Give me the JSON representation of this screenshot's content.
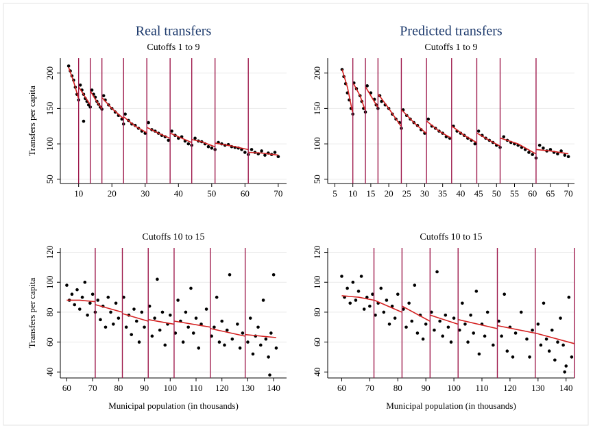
{
  "chart_data": [
    {
      "type": "scatter",
      "title": "Real transfers",
      "subtitle": "Cutoffs 1 to 9",
      "ylabel": "Transfers per capita",
      "xlim": [
        4.5,
        72.5
      ],
      "ylim": [
        44,
        221
      ],
      "xticks": [
        10,
        20,
        30,
        40,
        50,
        60,
        70
      ],
      "yticks": [
        50,
        100,
        150,
        200
      ],
      "grid": true,
      "vlines": [
        10,
        13.5,
        17,
        23.5,
        30.5,
        37.5,
        44,
        51,
        61
      ],
      "vline_color": "#9e1a4c",
      "series": [
        {
          "type": "scatter",
          "color": "#000000",
          "x": [
            7,
            7.5,
            8,
            8.5,
            9,
            9.5,
            10,
            10.5,
            11,
            11.5,
            12,
            12.5,
            13,
            13.5,
            14,
            14.5,
            15,
            15.5,
            16,
            16.5,
            17,
            17.5,
            18,
            19,
            20,
            21,
            22,
            23,
            23.5,
            24,
            25,
            26,
            27,
            28,
            29,
            30,
            31,
            32,
            33,
            34,
            35,
            36,
            37,
            38,
            39,
            40,
            41,
            42,
            43,
            44,
            45,
            46,
            47,
            48,
            49,
            50,
            51,
            52,
            53,
            54,
            55,
            56,
            57,
            58,
            59,
            60,
            61,
            62,
            63,
            64,
            65,
            66,
            67,
            68,
            69,
            70,
            11.5
          ],
          "values": [
            210,
            203,
            196,
            190,
            180,
            170,
            162,
            183,
            176,
            170,
            164,
            160,
            155,
            152,
            176,
            170,
            166,
            160,
            156,
            152,
            149,
            168,
            162,
            155,
            150,
            145,
            140,
            135,
            128,
            142,
            133,
            128,
            126,
            122,
            118,
            115,
            130,
            120,
            118,
            115,
            112,
            110,
            105,
            118,
            112,
            108,
            110,
            104,
            100,
            98,
            108,
            104,
            103,
            100,
            96,
            94,
            92,
            102,
            100,
            98,
            99,
            96,
            95,
            94,
            92,
            88,
            85,
            92,
            88,
            86,
            90,
            84,
            87,
            85,
            88,
            82,
            132
          ]
        },
        {
          "type": "line",
          "color": "#d42020",
          "x": [
            7,
            8.5,
            9.9,
            10,
            10.1,
            12,
            13.4,
            13.5,
            13.6,
            15,
            16.9,
            17,
            17.1,
            20,
            23.4,
            23.5,
            23.6,
            27,
            30.4,
            30.5,
            30.6,
            34,
            37.4,
            37.5,
            37.6,
            41,
            43.9,
            44,
            44.1,
            47,
            50.9,
            51,
            51.1,
            56,
            60.9,
            61,
            61.1,
            65,
            70
          ],
          "values": [
            208,
            188,
            165,
            null,
            180,
            166,
            156,
            null,
            174,
            163,
            150,
            null,
            165,
            150,
            136,
            null,
            138,
            125,
            116,
            null,
            123,
            115,
            108,
            null,
            115,
            108,
            102,
            null,
            106,
            103,
            96,
            null,
            101,
            97,
            92,
            null,
            88,
            87,
            84
          ]
        }
      ]
    },
    {
      "type": "scatter",
      "title": "Predicted transfers",
      "subtitle": "Cutoffs 1 to 9",
      "xlim": [
        3,
        71.7
      ],
      "ylim": [
        44,
        221
      ],
      "xticks": [
        5,
        10,
        15,
        20,
        25,
        30,
        35,
        40,
        45,
        50,
        55,
        60,
        65,
        70
      ],
      "yticks": [
        50,
        100,
        150,
        200
      ],
      "grid": true,
      "vlines": [
        10,
        13.5,
        17,
        23.5,
        30.5,
        37.5,
        44.5,
        51,
        61
      ],
      "vline_color": "#9e1a4c",
      "series": [
        {
          "type": "scatter",
          "color": "#000000",
          "x": [
            7,
            7.5,
            8,
            8.5,
            9,
            9.5,
            10,
            10.3,
            11,
            12,
            12.5,
            13,
            13.5,
            14,
            15,
            16,
            16.5,
            17,
            17.5,
            18,
            19,
            20,
            21,
            22,
            23,
            23.5,
            24,
            25,
            26,
            27,
            28,
            29,
            30,
            31,
            32,
            33,
            34,
            35,
            36,
            37,
            38,
            39,
            40,
            41,
            42,
            43,
            44,
            45,
            46,
            47,
            48,
            49,
            50,
            51,
            52,
            53,
            54,
            55,
            56,
            57,
            58,
            59,
            60,
            61,
            62,
            63,
            64,
            65,
            66,
            67,
            68,
            69,
            70
          ],
          "values": [
            205,
            195,
            185,
            172,
            162,
            150,
            142,
            186,
            178,
            168,
            160,
            150,
            145,
            182,
            172,
            163,
            155,
            150,
            168,
            160,
            155,
            150,
            142,
            135,
            130,
            122,
            148,
            140,
            135,
            130,
            126,
            120,
            115,
            135,
            125,
            122,
            118,
            115,
            110,
            108,
            125,
            118,
            115,
            112,
            108,
            105,
            100,
            118,
            112,
            108,
            105,
            102,
            98,
            95,
            110,
            105,
            102,
            100,
            98,
            95,
            92,
            88,
            85,
            80,
            98,
            94,
            90,
            92,
            88,
            86,
            90,
            84,
            82
          ]
        },
        {
          "type": "line",
          "color": "#d42020",
          "x": [
            7,
            8.5,
            9.9,
            10,
            10.2,
            12,
            13.4,
            13.5,
            13.6,
            15,
            16.9,
            17,
            17.1,
            20,
            23.4,
            23.5,
            23.6,
            27,
            30.4,
            30.5,
            30.6,
            34,
            37.4,
            37.5,
            37.6,
            41,
            44.4,
            44.5,
            44.6,
            48,
            50.9,
            51,
            51.1,
            56,
            60.9,
            61,
            61.1,
            65,
            70
          ],
          "values": [
            205,
            180,
            145,
            null,
            185,
            168,
            148,
            null,
            180,
            168,
            152,
            null,
            170,
            150,
            125,
            null,
            148,
            130,
            115,
            null,
            132,
            118,
            108,
            null,
            125,
            112,
            102,
            null,
            115,
            105,
            97,
            null,
            108,
            100,
            86,
            null,
            92,
            90,
            86
          ]
        }
      ]
    },
    {
      "type": "scatter",
      "subtitle": "Cutoffs 10 to 15",
      "ylabel": "Transfers per capita",
      "xlabel": "Municipal population (in thousands)",
      "xlim": [
        57.5,
        145
      ],
      "ylim": [
        36,
        123
      ],
      "xticks": [
        60,
        70,
        80,
        90,
        100,
        110,
        120,
        130,
        140
      ],
      "yticks": [
        40,
        60,
        80,
        100,
        120
      ],
      "grid": true,
      "vlines": [
        71,
        81.5,
        91.5,
        101.5,
        115.5,
        129
      ],
      "vline_color": "#9e1a4c",
      "series": [
        {
          "type": "scatter",
          "color": "#000000",
          "x": [
            60,
            61,
            62,
            63,
            64,
            65,
            66,
            67,
            68,
            69,
            70,
            71,
            72,
            73,
            74,
            75,
            76,
            77,
            78,
            79,
            80,
            82,
            83,
            84,
            85,
            86,
            87,
            88,
            89,
            90,
            92,
            93,
            94,
            95,
            96,
            97,
            98,
            99,
            100,
            102,
            103,
            104,
            105,
            106,
            107,
            108,
            109,
            110,
            111,
            112,
            114,
            116,
            117,
            118,
            119,
            120,
            121,
            122,
            123,
            124,
            126,
            127,
            128,
            130,
            131,
            132,
            133,
            134,
            135,
            136,
            137,
            138,
            139,
            140,
            141,
            138.5
          ],
          "values": [
            98,
            88,
            92,
            85,
            95,
            82,
            90,
            100,
            78,
            86,
            92,
            80,
            88,
            75,
            84,
            70,
            90,
            80,
            72,
            86,
            76,
            90,
            70,
            78,
            65,
            82,
            74,
            60,
            80,
            70,
            84,
            64,
            76,
            102,
            68,
            80,
            58,
            72,
            78,
            66,
            88,
            74,
            60,
            80,
            70,
            96,
            66,
            76,
            56,
            72,
            82,
            64,
            70,
            90,
            60,
            74,
            58,
            68,
            105,
            62,
            72,
            56,
            66,
            60,
            76,
            52,
            64,
            70,
            58,
            88,
            62,
            50,
            66,
            105,
            56,
            38
          ]
        },
        {
          "type": "line",
          "color": "#d42020",
          "x": [
            60,
            65,
            70.9,
            71,
            71.1,
            81.4,
            81.5,
            81.6,
            91.4,
            91.5,
            91.6,
            101.4,
            101.5,
            101.6,
            115.4,
            115.5,
            115.6,
            128.9,
            129,
            129.1,
            141
          ],
          "values": [
            88,
            88,
            87,
            null,
            85,
            80,
            null,
            79,
            74,
            null,
            75,
            72,
            null,
            74,
            70,
            null,
            69,
            64,
            null,
            65,
            63
          ]
        }
      ]
    },
    {
      "type": "scatter",
      "subtitle": "Cutoffs 10 to 15",
      "xlabel": "Municipal population (in thousands)",
      "xlim": [
        55,
        143
      ],
      "ylim": [
        36,
        123
      ],
      "xticks": [
        60,
        70,
        80,
        90,
        100,
        110,
        120,
        130,
        140
      ],
      "yticks": [
        40,
        60,
        80,
        100,
        120
      ],
      "grid": true,
      "vlines": [
        71.5,
        81.5,
        91.5,
        101.5,
        115.5,
        129,
        143
      ],
      "vline_color": "#9e1a4c",
      "series": [
        {
          "type": "scatter",
          "color": "#000000",
          "x": [
            60,
            61,
            62,
            63,
            64,
            65,
            66,
            67,
            68,
            69,
            70,
            71,
            72,
            73,
            74,
            75,
            76,
            77,
            78,
            79,
            80,
            82,
            83,
            84,
            85,
            86,
            87,
            88,
            89,
            90,
            92,
            93,
            94,
            95,
            96,
            97,
            98,
            99,
            100,
            102,
            103,
            104,
            105,
            106,
            107,
            108,
            109,
            110,
            111,
            112,
            114,
            116,
            117,
            118,
            119,
            120,
            121,
            122,
            124,
            126,
            127,
            128,
            130,
            131,
            132,
            133,
            134,
            135,
            136,
            137,
            138,
            139,
            140,
            141,
            142,
            139.5
          ],
          "values": [
            104,
            90,
            96,
            86,
            100,
            88,
            94,
            104,
            82,
            90,
            84,
            92,
            78,
            86,
            96,
            80,
            88,
            72,
            84,
            76,
            92,
            82,
            70,
            86,
            74,
            98,
            66,
            78,
            62,
            72,
            80,
            68,
            107,
            74,
            64,
            78,
            70,
            60,
            76,
            68,
            86,
            72,
            60,
            78,
            66,
            94,
            52,
            72,
            64,
            80,
            58,
            74,
            64,
            92,
            54,
            70,
            50,
            66,
            80,
            62,
            50,
            68,
            72,
            58,
            86,
            62,
            54,
            68,
            48,
            60,
            76,
            58,
            44,
            90,
            50,
            40
          ]
        },
        {
          "type": "line",
          "color": "#d42020",
          "x": [
            60,
            66,
            71.4,
            71.5,
            71.6,
            81.4,
            81.5,
            81.6,
            91.4,
            91.5,
            91.6,
            101.4,
            101.5,
            101.6,
            115.4,
            115.5,
            115.6,
            128.9,
            129,
            129.1,
            142.9
          ],
          "values": [
            91,
            90,
            88,
            null,
            88,
            80,
            null,
            84,
            74,
            null,
            78,
            72,
            null,
            75,
            69,
            null,
            71,
            66,
            null,
            66,
            59
          ]
        }
      ]
    }
  ]
}
